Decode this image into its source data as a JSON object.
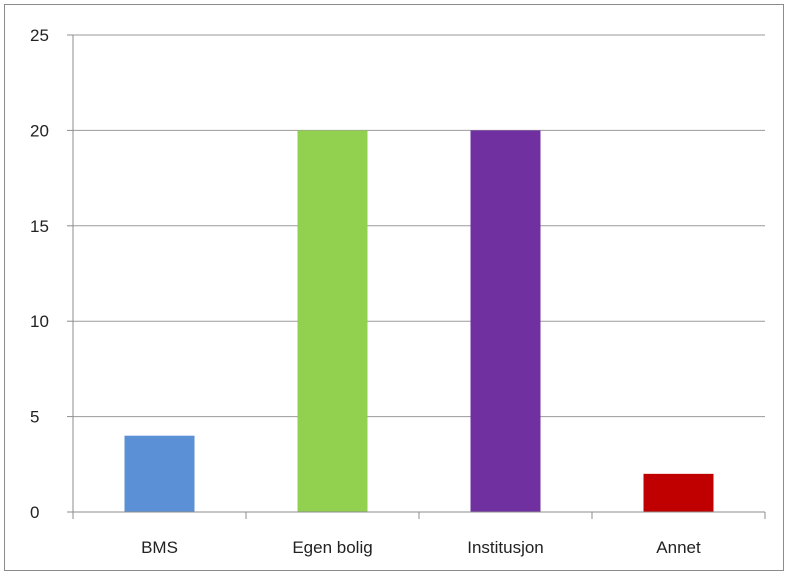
{
  "chart_data": {
    "type": "bar",
    "categories": [
      "BMS",
      "Egen bolig",
      "Institusjon",
      "Annet"
    ],
    "values": [
      4,
      20,
      20,
      2
    ],
    "colors": [
      "#5b8fd6",
      "#92d050",
      "#7030a0",
      "#c00000"
    ],
    "ylim": [
      0,
      25
    ],
    "yticks": [
      "0",
      "5",
      "10",
      "15",
      "20",
      "25"
    ],
    "grid": true,
    "legend": "none"
  }
}
